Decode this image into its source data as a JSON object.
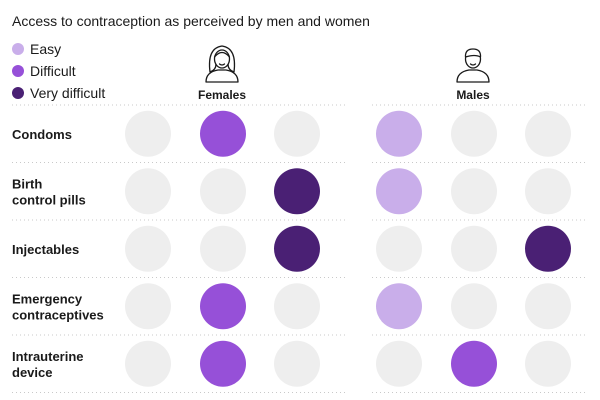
{
  "chart_data": {
    "type": "dot-matrix",
    "title": "Access to contraception as perceived by men and women",
    "legend": [
      {
        "label": "Easy",
        "color": "#c9aeea"
      },
      {
        "label": "Difficult",
        "color": "#9650d8"
      },
      {
        "label": "Very difficult",
        "color": "#4a2074"
      }
    ],
    "empty_color": "#eeeeee",
    "columns": [
      "Easy",
      "Difficult",
      "Very difficult"
    ],
    "groups": [
      {
        "label": "Females",
        "icon": "female-person-icon"
      },
      {
        "label": "Males",
        "icon": "male-person-icon"
      }
    ],
    "rows": [
      {
        "label_lines": [
          "Condoms"
        ],
        "values": {
          "Females": "Difficult",
          "Males": "Easy"
        }
      },
      {
        "label_lines": [
          "Birth",
          "control pills"
        ],
        "values": {
          "Females": "Very difficult",
          "Males": "Easy"
        }
      },
      {
        "label_lines": [
          "Injectables"
        ],
        "values": {
          "Females": "Very difficult",
          "Males": "Very difficult"
        }
      },
      {
        "label_lines": [
          "Emergency",
          "contraceptives"
        ],
        "values": {
          "Females": "Difficult",
          "Males": "Easy"
        }
      },
      {
        "label_lines": [
          "Intrauterine",
          "device"
        ],
        "values": {
          "Females": "Difficult",
          "Males": "Difficult"
        }
      }
    ]
  }
}
